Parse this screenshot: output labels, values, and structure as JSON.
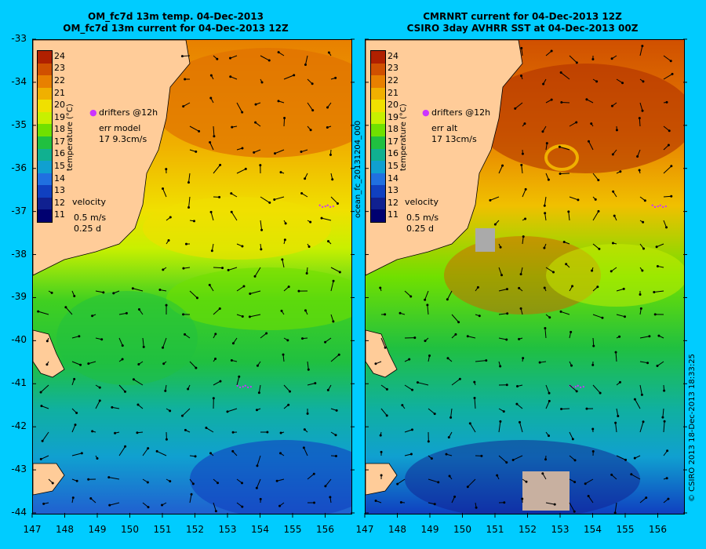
{
  "left_panel": {
    "title_line1": "OM_fc7d 13m temp. 04-Dec-2013",
    "title_line2": "OM_fc7d 13m current for 04-Dec-2013 12Z",
    "legend": {
      "drifters": "drifters @12h",
      "err_label": "err model",
      "err_value": "17 9.3cm/s",
      "velocity_label": "velocity",
      "velocity_scale": "0.5 m/s",
      "velocity_time": "0.25 d"
    }
  },
  "right_panel": {
    "title_line1": "CMRNRT current for 04-Dec-2013 12Z",
    "title_line2": "CSIRO 3day AVHRR SST at 04-Dec-2013 00Z",
    "legend": {
      "drifters": "drifters @12h",
      "err_label": "err alt",
      "err_value": "17 13cm/s",
      "velocity_label": "velocity",
      "velocity_scale": "0.5 m/s",
      "velocity_time": "0.25 d"
    }
  },
  "colorbar": {
    "label": "temperature (°C)",
    "ticks": [
      "24",
      "23",
      "22",
      "21",
      "20",
      "19",
      "18",
      "17",
      "16",
      "15",
      "14",
      "13",
      "12",
      "11"
    ],
    "colors": [
      "#b02000",
      "#d05000",
      "#e88000",
      "#f0b000",
      "#f0e000",
      "#c8f000",
      "#70e000",
      "#20c040",
      "#10b090",
      "#10a0d0",
      "#2070e0",
      "#1040c0",
      "#102090",
      "#000070"
    ]
  },
  "side_id": "ocean_fc_20131204_000",
  "credit": "© CSIRO 2013   18-Dec-2013 18:33:25",
  "axes": {
    "latitudes": [
      "-33",
      "-34",
      "-35",
      "-36",
      "-37",
      "-38",
      "-39",
      "-40",
      "-41",
      "-42",
      "-43",
      "-44"
    ],
    "longitudes": [
      "147",
      "148",
      "149",
      "150",
      "151",
      "152",
      "153",
      "154",
      "155",
      "156"
    ]
  },
  "colors": {
    "background": "#00ccff",
    "land": "#ffcc99",
    "drifter": "#cc33ff"
  }
}
